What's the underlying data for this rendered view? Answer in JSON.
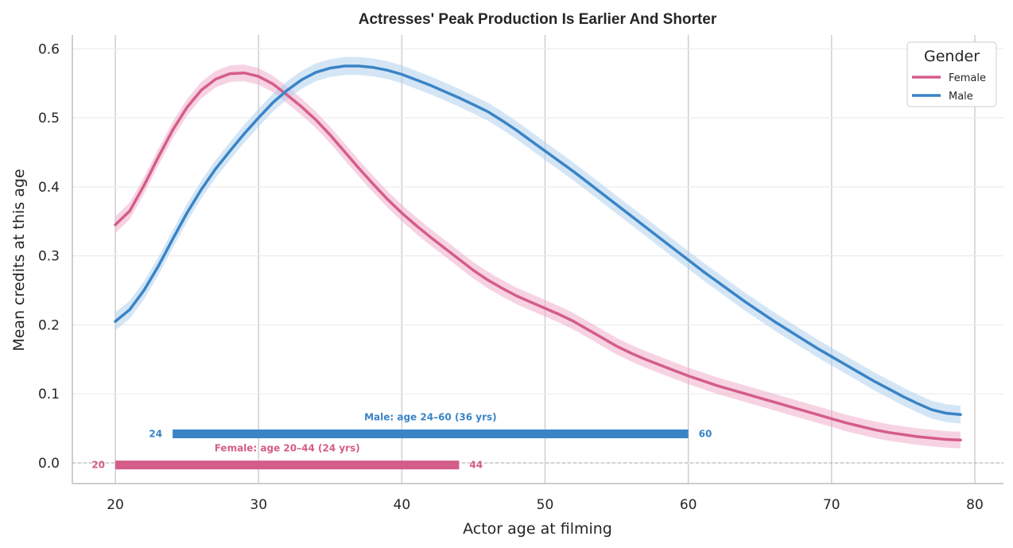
{
  "chart_data": {
    "type": "line",
    "title": "Actresses' Peak Production Is Earlier And Shorter",
    "xlabel": "Actor age at filming",
    "ylabel": "Mean credits at this age",
    "xlim": [
      17,
      82
    ],
    "ylim": [
      -0.03,
      0.62
    ],
    "xticks": [
      20,
      30,
      40,
      50,
      60,
      70,
      80
    ],
    "yticks": [
      0.0,
      0.1,
      0.2,
      0.3,
      0.4,
      0.5,
      0.6
    ],
    "ytick_labels": [
      "0.0",
      "0.1",
      "0.2",
      "0.3",
      "0.4",
      "0.5",
      "0.6"
    ],
    "grid": true,
    "legend": {
      "title": "Gender",
      "placement": "top-right"
    },
    "series": [
      {
        "name": "Female",
        "color": "#d45d8a",
        "band_color": "#f0a8c6",
        "x": [
          20,
          21,
          22,
          23,
          24,
          25,
          26,
          27,
          28,
          29,
          30,
          31,
          32,
          33,
          34,
          35,
          36,
          37,
          38,
          39,
          40,
          41,
          42,
          43,
          44,
          45,
          46,
          47,
          48,
          49,
          50,
          51,
          52,
          53,
          54,
          55,
          56,
          57,
          58,
          59,
          60,
          61,
          62,
          63,
          64,
          65,
          66,
          67,
          68,
          69,
          70,
          71,
          72,
          73,
          74,
          75,
          76,
          77,
          78,
          79
        ],
        "y": [
          0.345,
          0.365,
          0.402,
          0.443,
          0.482,
          0.515,
          0.54,
          0.556,
          0.564,
          0.565,
          0.56,
          0.549,
          0.533,
          0.516,
          0.497,
          0.475,
          0.451,
          0.427,
          0.404,
          0.382,
          0.362,
          0.344,
          0.327,
          0.311,
          0.295,
          0.279,
          0.265,
          0.253,
          0.242,
          0.233,
          0.224,
          0.215,
          0.205,
          0.193,
          0.181,
          0.169,
          0.159,
          0.15,
          0.142,
          0.134,
          0.126,
          0.119,
          0.112,
          0.106,
          0.1,
          0.094,
          0.088,
          0.082,
          0.076,
          0.07,
          0.064,
          0.058,
          0.053,
          0.048,
          0.044,
          0.041,
          0.038,
          0.036,
          0.034,
          0.033
        ],
        "band": 0.012
      },
      {
        "name": "Male",
        "color": "#3a84c6",
        "band_color": "#a9cdee",
        "x": [
          20,
          21,
          22,
          23,
          24,
          25,
          26,
          27,
          28,
          29,
          30,
          31,
          32,
          33,
          34,
          35,
          36,
          37,
          38,
          39,
          40,
          41,
          42,
          43,
          44,
          45,
          46,
          47,
          48,
          49,
          50,
          51,
          52,
          53,
          54,
          55,
          56,
          57,
          58,
          59,
          60,
          61,
          62,
          63,
          64,
          65,
          66,
          67,
          68,
          69,
          70,
          71,
          72,
          73,
          74,
          75,
          76,
          77,
          78,
          79
        ],
        "y": [
          0.205,
          0.222,
          0.25,
          0.285,
          0.324,
          0.362,
          0.396,
          0.426,
          0.452,
          0.477,
          0.5,
          0.522,
          0.54,
          0.555,
          0.566,
          0.572,
          0.575,
          0.575,
          0.573,
          0.569,
          0.563,
          0.555,
          0.547,
          0.538,
          0.529,
          0.519,
          0.509,
          0.496,
          0.482,
          0.467,
          0.452,
          0.437,
          0.422,
          0.406,
          0.39,
          0.374,
          0.358,
          0.342,
          0.326,
          0.31,
          0.294,
          0.278,
          0.263,
          0.248,
          0.233,
          0.219,
          0.205,
          0.192,
          0.179,
          0.166,
          0.154,
          0.142,
          0.13,
          0.118,
          0.107,
          0.096,
          0.086,
          0.077,
          0.072,
          0.07
        ],
        "band": 0.013
      }
    ],
    "range_bars": [
      {
        "name": "Male",
        "start": 24,
        "end": 60,
        "y": 0.042,
        "color": "#3a84c6",
        "label": "Male: age 24–60  (36 yrs)",
        "start_label": "24",
        "end_label": "60"
      },
      {
        "name": "Female",
        "start": 20,
        "end": 44,
        "y": -0.003,
        "color": "#d45d8a",
        "label": "Female: age 20–44  (24 yrs)",
        "start_label": "20",
        "end_label": "44"
      }
    ],
    "zero_line": 0.0
  }
}
